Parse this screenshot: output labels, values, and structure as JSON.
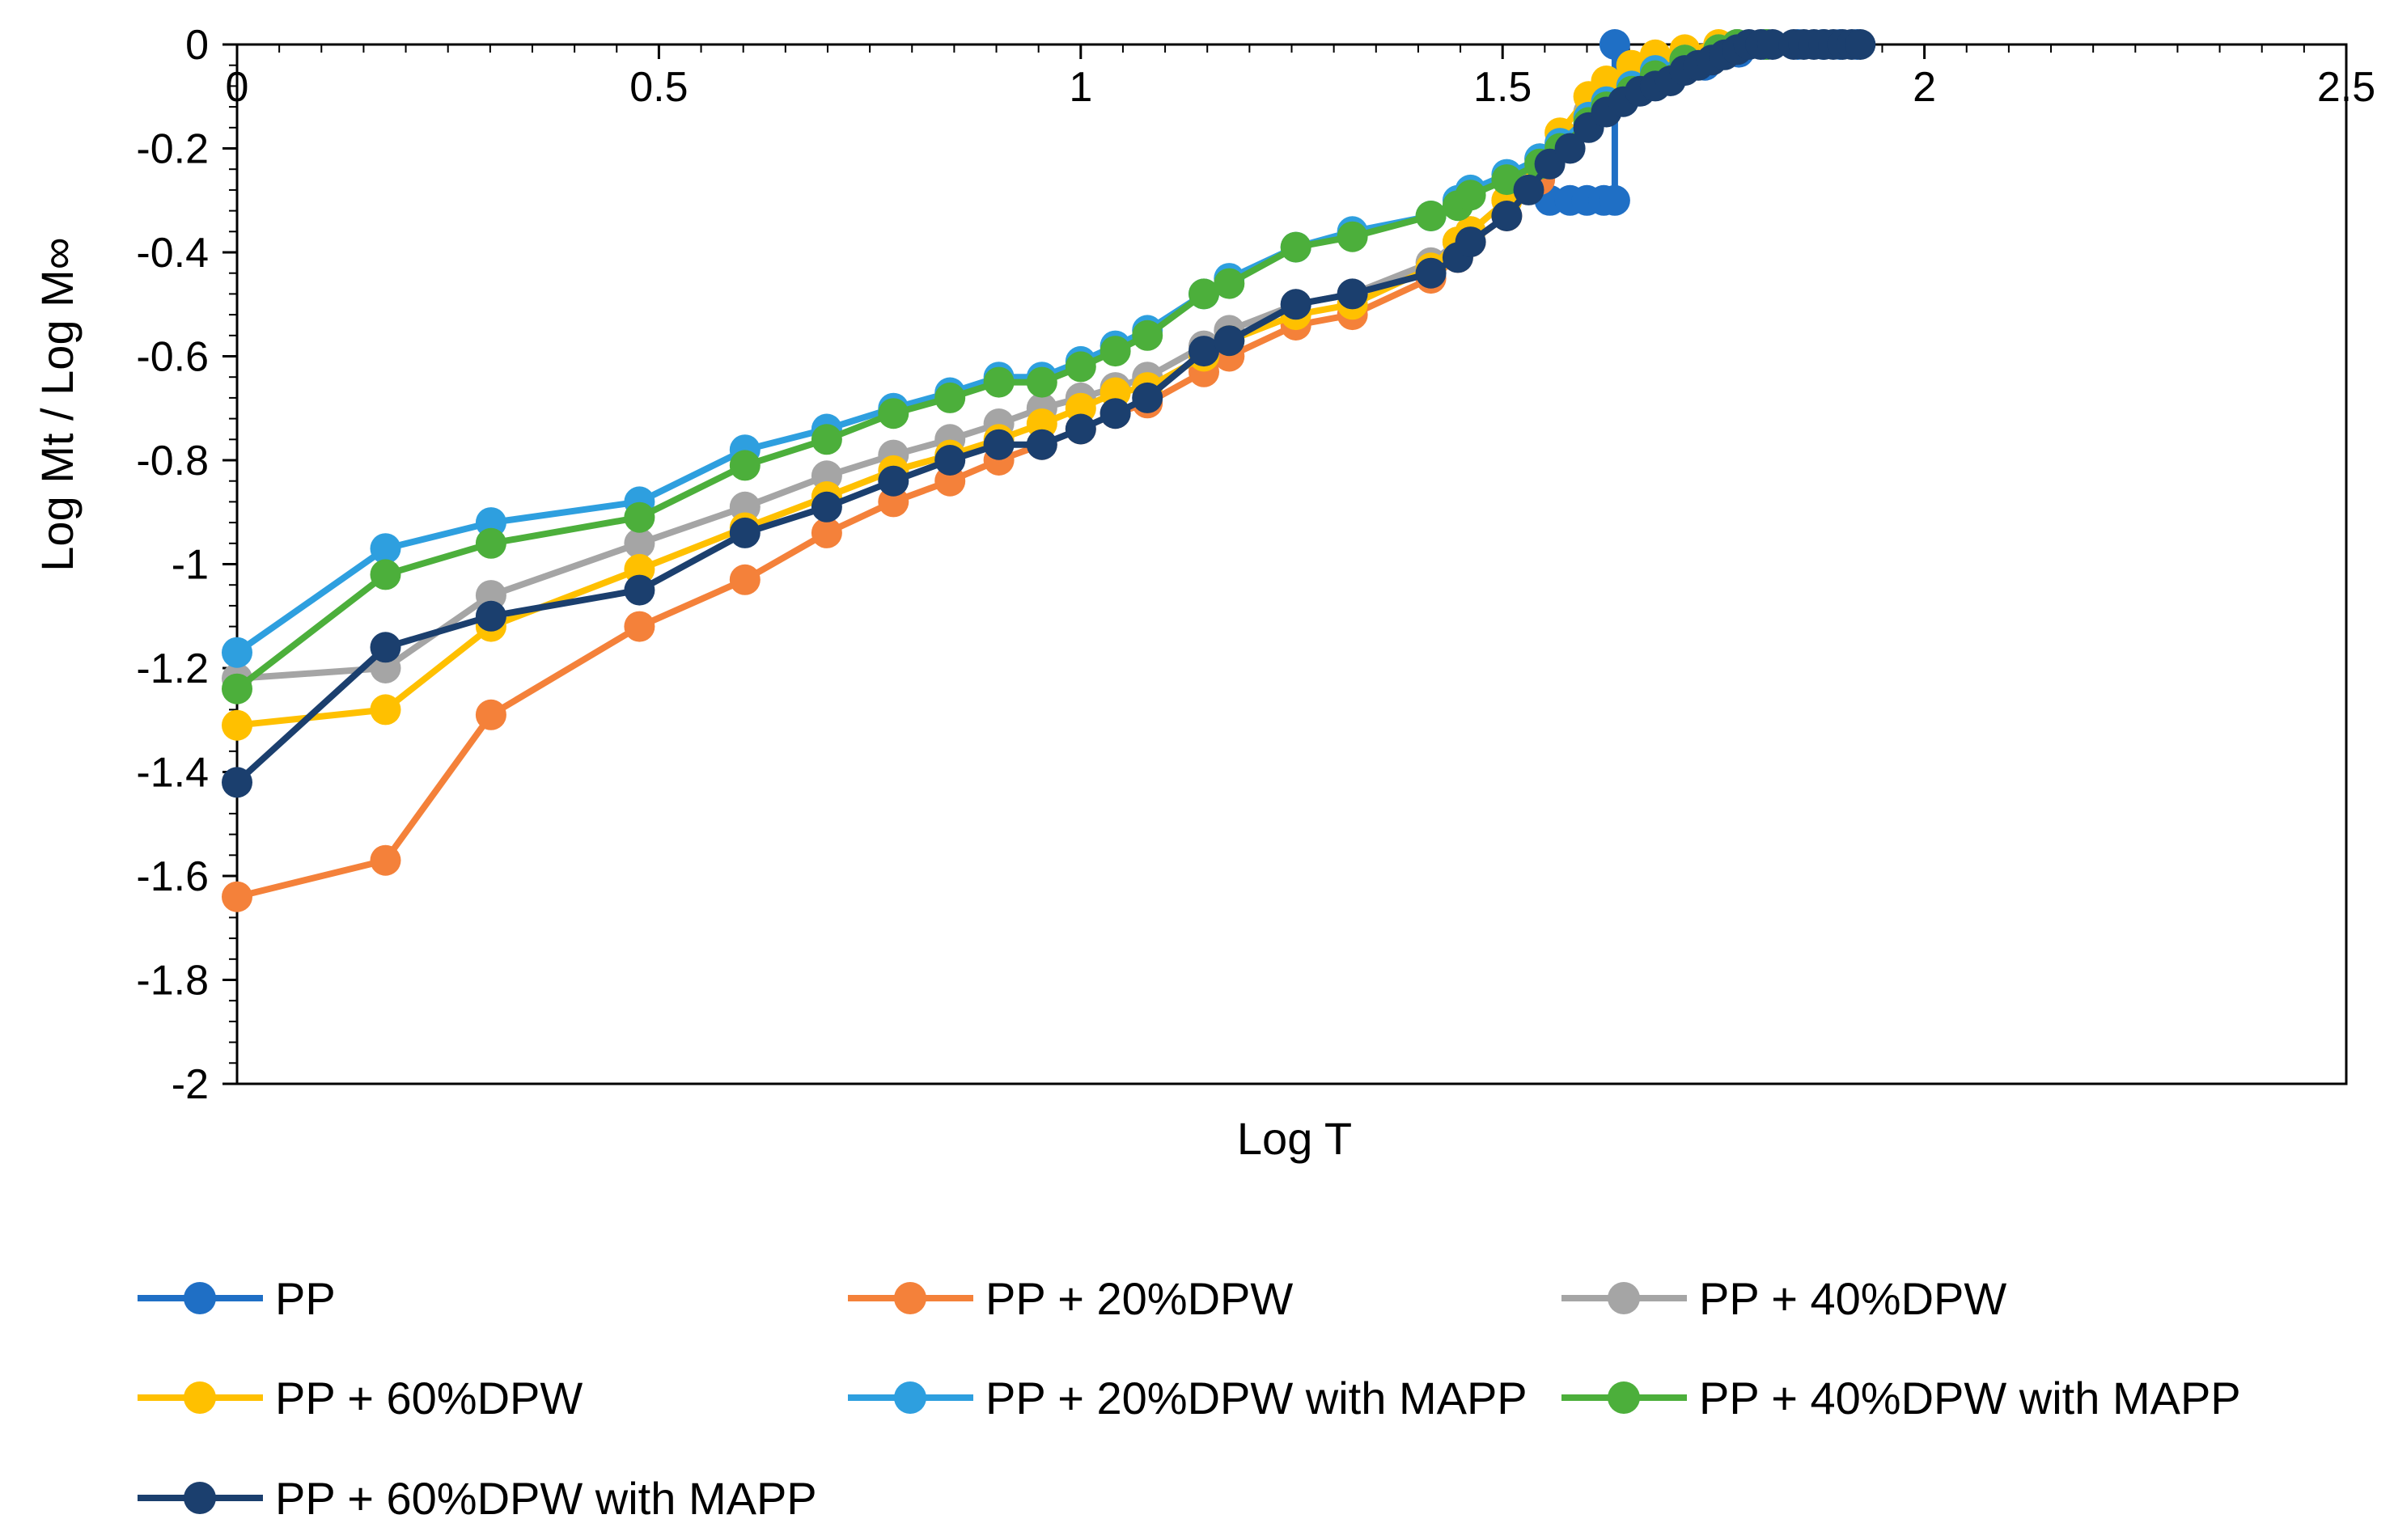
{
  "chart_data": {
    "type": "line",
    "title": "",
    "xlabel": "Log T",
    "ylabel": "Log Mt / Log M∞",
    "xlim": [
      0,
      2.5
    ],
    "ylim": [
      -2,
      0
    ],
    "x_ticks": [
      0,
      0.5,
      1,
      1.5,
      2,
      2.5
    ],
    "x_tick_labels": [
      "0",
      "0.5",
      "1",
      "1.5",
      "2",
      "2.5"
    ],
    "y_ticks": [
      0,
      -0.2,
      -0.4,
      -0.6,
      -0.8,
      -1,
      -1.2,
      -1.4,
      -1.6,
      -1.8,
      -2
    ],
    "y_tick_labels": [
      "0",
      "-0.2",
      "-0.4",
      "-0.6",
      "-0.8",
      "-1",
      "-1.2",
      "-1.4",
      "-1.6",
      "-1.8",
      "-2"
    ],
    "legend_position": "bottom",
    "series": [
      {
        "name": "PP",
        "color": "#1f6fc5",
        "points": [
          [
            1.556,
            -0.3
          ],
          [
            1.58,
            -0.3
          ],
          [
            1.6,
            -0.3
          ],
          [
            1.62,
            -0.3
          ],
          [
            1.633,
            -0.3
          ],
          [
            1.633,
            0
          ],
          [
            1.66,
            -0.09
          ],
          [
            1.7,
            -0.06
          ],
          [
            1.74,
            -0.04
          ],
          [
            1.78,
            -0.015
          ],
          [
            1.81,
            0
          ],
          [
            1.85,
            0
          ],
          [
            1.88,
            0
          ],
          [
            1.9,
            0
          ],
          [
            1.92,
            0
          ]
        ]
      },
      {
        "name": "PP + 20%DPW",
        "color": "#f4813a",
        "points": [
          [
            0,
            -1.64
          ],
          [
            0.176,
            -1.57
          ],
          [
            0.301,
            -1.29
          ],
          [
            0.477,
            -1.12
          ],
          [
            0.602,
            -1.03
          ],
          [
            0.699,
            -0.94
          ],
          [
            0.778,
            -0.88
          ],
          [
            0.845,
            -0.84
          ],
          [
            0.903,
            -0.8
          ],
          [
            0.954,
            -0.77
          ],
          [
            1,
            -0.74
          ],
          [
            1.041,
            -0.71
          ],
          [
            1.079,
            -0.69
          ],
          [
            1.146,
            -0.63
          ],
          [
            1.176,
            -0.6
          ],
          [
            1.255,
            -0.54
          ],
          [
            1.322,
            -0.52
          ],
          [
            1.415,
            -0.45
          ],
          [
            1.447,
            -0.41
          ],
          [
            1.462,
            -0.38
          ],
          [
            1.505,
            -0.33
          ],
          [
            1.544,
            -0.26
          ],
          [
            1.568,
            -0.2
          ],
          [
            1.602,
            -0.15
          ],
          [
            1.623,
            -0.12
          ],
          [
            1.653,
            -0.08
          ],
          [
            1.681,
            -0.05
          ],
          [
            1.716,
            -0.03
          ],
          [
            1.756,
            -0.01
          ],
          [
            1.778,
            0
          ],
          [
            1.813,
            0
          ]
        ]
      },
      {
        "name": "PP + 40%DPW",
        "color": "#a5a5a5",
        "points": [
          [
            0,
            -1.22
          ],
          [
            0.176,
            -1.2
          ],
          [
            0.301,
            -1.06
          ],
          [
            0.477,
            -0.96
          ],
          [
            0.602,
            -0.89
          ],
          [
            0.699,
            -0.83
          ],
          [
            0.778,
            -0.79
          ],
          [
            0.845,
            -0.76
          ],
          [
            0.903,
            -0.73
          ],
          [
            0.954,
            -0.7
          ],
          [
            1,
            -0.68
          ],
          [
            1.041,
            -0.66
          ],
          [
            1.079,
            -0.64
          ],
          [
            1.146,
            -0.58
          ],
          [
            1.176,
            -0.55
          ],
          [
            1.255,
            -0.5
          ],
          [
            1.322,
            -0.48
          ],
          [
            1.415,
            -0.42
          ],
          [
            1.447,
            -0.38
          ],
          [
            1.462,
            -0.36
          ],
          [
            1.505,
            -0.3
          ],
          [
            1.544,
            -0.22
          ],
          [
            1.568,
            -0.19
          ],
          [
            1.602,
            -0.13
          ],
          [
            1.623,
            -0.1
          ],
          [
            1.653,
            -0.06
          ],
          [
            1.681,
            -0.04
          ],
          [
            1.716,
            -0.02
          ],
          [
            1.756,
            -0.005
          ],
          [
            1.778,
            0
          ],
          [
            1.813,
            0
          ]
        ]
      },
      {
        "name": "PP + 60%DPW",
        "color": "#ffc000",
        "points": [
          [
            0,
            -1.31
          ],
          [
            0.176,
            -1.28
          ],
          [
            0.301,
            -1.12
          ],
          [
            0.477,
            -1.01
          ],
          [
            0.602,
            -0.93
          ],
          [
            0.699,
            -0.87
          ],
          [
            0.778,
            -0.82
          ],
          [
            0.845,
            -0.79
          ],
          [
            0.903,
            -0.76
          ],
          [
            0.954,
            -0.73
          ],
          [
            1,
            -0.7
          ],
          [
            1.041,
            -0.67
          ],
          [
            1.079,
            -0.66
          ],
          [
            1.146,
            -0.6
          ],
          [
            1.176,
            -0.57
          ],
          [
            1.255,
            -0.52
          ],
          [
            1.322,
            -0.5
          ],
          [
            1.415,
            -0.43
          ],
          [
            1.447,
            -0.38
          ],
          [
            1.462,
            -0.36
          ],
          [
            1.505,
            -0.3
          ],
          [
            1.544,
            -0.23
          ],
          [
            1.568,
            -0.17
          ],
          [
            1.602,
            -0.1
          ],
          [
            1.623,
            -0.07
          ],
          [
            1.653,
            -0.04
          ],
          [
            1.681,
            -0.02
          ],
          [
            1.716,
            -0.01
          ],
          [
            1.756,
            0
          ],
          [
            1.778,
            0
          ],
          [
            1.813,
            0
          ]
        ]
      },
      {
        "name": "PP + 20%DPW with MAPP",
        "color": "#2e9fdf",
        "points": [
          [
            0,
            -1.17
          ],
          [
            0.176,
            -0.97
          ],
          [
            0.301,
            -0.92
          ],
          [
            0.477,
            -0.88
          ],
          [
            0.602,
            -0.78
          ],
          [
            0.699,
            -0.74
          ],
          [
            0.778,
            -0.7
          ],
          [
            0.845,
            -0.67
          ],
          [
            0.903,
            -0.64
          ],
          [
            0.954,
            -0.64
          ],
          [
            1,
            -0.61
          ],
          [
            1.041,
            -0.58
          ],
          [
            1.079,
            -0.55
          ],
          [
            1.146,
            -0.48
          ],
          [
            1.176,
            -0.45
          ],
          [
            1.255,
            -0.39
          ],
          [
            1.322,
            -0.36
          ],
          [
            1.415,
            -0.33
          ],
          [
            1.447,
            -0.3
          ],
          [
            1.462,
            -0.28
          ],
          [
            1.505,
            -0.25
          ],
          [
            1.544,
            -0.22
          ],
          [
            1.568,
            -0.19
          ],
          [
            1.602,
            -0.14
          ],
          [
            1.623,
            -0.11
          ],
          [
            1.653,
            -0.08
          ],
          [
            1.681,
            -0.05
          ],
          [
            1.716,
            -0.03
          ],
          [
            1.756,
            -0.01
          ],
          [
            1.778,
            0
          ],
          [
            1.813,
            0
          ]
        ]
      },
      {
        "name": "PP + 40%DPW with MAPP",
        "color": "#4caf3b",
        "points": [
          [
            0,
            -1.24
          ],
          [
            0.176,
            -1.02
          ],
          [
            0.301,
            -0.96
          ],
          [
            0.477,
            -0.91
          ],
          [
            0.602,
            -0.81
          ],
          [
            0.699,
            -0.76
          ],
          [
            0.778,
            -0.71
          ],
          [
            0.845,
            -0.68
          ],
          [
            0.903,
            -0.65
          ],
          [
            0.954,
            -0.65
          ],
          [
            1,
            -0.62
          ],
          [
            1.041,
            -0.59
          ],
          [
            1.079,
            -0.56
          ],
          [
            1.146,
            -0.48
          ],
          [
            1.176,
            -0.46
          ],
          [
            1.255,
            -0.39
          ],
          [
            1.322,
            -0.37
          ],
          [
            1.415,
            -0.33
          ],
          [
            1.447,
            -0.31
          ],
          [
            1.462,
            -0.29
          ],
          [
            1.505,
            -0.26
          ],
          [
            1.544,
            -0.23
          ],
          [
            1.568,
            -0.2
          ],
          [
            1.602,
            -0.15
          ],
          [
            1.623,
            -0.12
          ],
          [
            1.653,
            -0.09
          ],
          [
            1.681,
            -0.06
          ],
          [
            1.716,
            -0.03
          ],
          [
            1.756,
            -0.01
          ],
          [
            1.778,
            0
          ],
          [
            1.813,
            0
          ]
        ]
      },
      {
        "name": "PP + 60%DPW with MAPP",
        "color": "#1b3f6e",
        "points": [
          [
            0,
            -1.42
          ],
          [
            0.176,
            -1.16
          ],
          [
            0.301,
            -1.1
          ],
          [
            0.477,
            -1.05
          ],
          [
            0.602,
            -0.94
          ],
          [
            0.699,
            -0.89
          ],
          [
            0.778,
            -0.84
          ],
          [
            0.845,
            -0.8
          ],
          [
            0.903,
            -0.77
          ],
          [
            0.954,
            -0.77
          ],
          [
            1,
            -0.74
          ],
          [
            1.041,
            -0.71
          ],
          [
            1.079,
            -0.68
          ],
          [
            1.146,
            -0.59
          ],
          [
            1.176,
            -0.57
          ],
          [
            1.255,
            -0.5
          ],
          [
            1.322,
            -0.48
          ],
          [
            1.415,
            -0.44
          ],
          [
            1.447,
            -0.41
          ],
          [
            1.462,
            -0.38
          ],
          [
            1.505,
            -0.33
          ],
          [
            1.531,
            -0.28
          ],
          [
            1.556,
            -0.23
          ],
          [
            1.58,
            -0.2
          ],
          [
            1.602,
            -0.16
          ],
          [
            1.623,
            -0.13
          ],
          [
            1.643,
            -0.11
          ],
          [
            1.663,
            -0.09
          ],
          [
            1.681,
            -0.08
          ],
          [
            1.699,
            -0.07
          ],
          [
            1.716,
            -0.05
          ],
          [
            1.732,
            -0.04
          ],
          [
            1.748,
            -0.03
          ],
          [
            1.763,
            -0.02
          ],
          [
            1.778,
            -0.01
          ],
          [
            1.792,
            0
          ],
          [
            1.806,
            0
          ],
          [
            1.82,
            0
          ],
          [
            1.845,
            0
          ],
          [
            1.857,
            0
          ],
          [
            1.869,
            0
          ],
          [
            1.881,
            0
          ],
          [
            1.892,
            0
          ],
          [
            1.903,
            0
          ],
          [
            1.914,
            0
          ],
          [
            1.924,
            0
          ]
        ]
      }
    ]
  }
}
